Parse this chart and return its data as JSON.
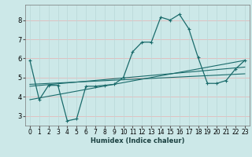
{
  "xlabel": "Humidex (Indice chaleur)",
  "ylabel": "",
  "xlim": [
    -0.5,
    23.5
  ],
  "ylim": [
    2.5,
    8.8
  ],
  "yticks": [
    3,
    4,
    5,
    6,
    7,
    8
  ],
  "xticks": [
    0,
    1,
    2,
    3,
    4,
    5,
    6,
    7,
    8,
    9,
    10,
    11,
    12,
    13,
    14,
    15,
    16,
    17,
    18,
    19,
    20,
    21,
    22,
    23
  ],
  "bg_color": "#cce8e8",
  "grid_major_color": "#f0b0b0",
  "grid_minor_color": "#d4e8e8",
  "line_color": "#1a6b6b",
  "main_line": {
    "x": [
      0,
      1,
      2,
      3,
      4,
      5,
      6,
      7,
      8,
      9,
      10,
      11,
      12,
      13,
      14,
      15,
      16,
      17,
      18,
      19,
      20,
      21,
      22,
      23
    ],
    "y": [
      5.9,
      3.85,
      4.6,
      4.6,
      2.75,
      2.85,
      4.55,
      4.55,
      4.6,
      4.65,
      5.0,
      6.35,
      6.85,
      6.85,
      8.15,
      8.0,
      8.3,
      7.55,
      6.05,
      4.7,
      4.7,
      4.85,
      5.45,
      5.9
    ]
  },
  "trend_lines": [
    {
      "x": [
        0,
        23
      ],
      "y": [
        3.85,
        5.9
      ]
    },
    {
      "x": [
        0,
        23
      ],
      "y": [
        4.55,
        5.55
      ]
    },
    {
      "x": [
        0,
        23
      ],
      "y": [
        4.65,
        5.2
      ]
    }
  ]
}
